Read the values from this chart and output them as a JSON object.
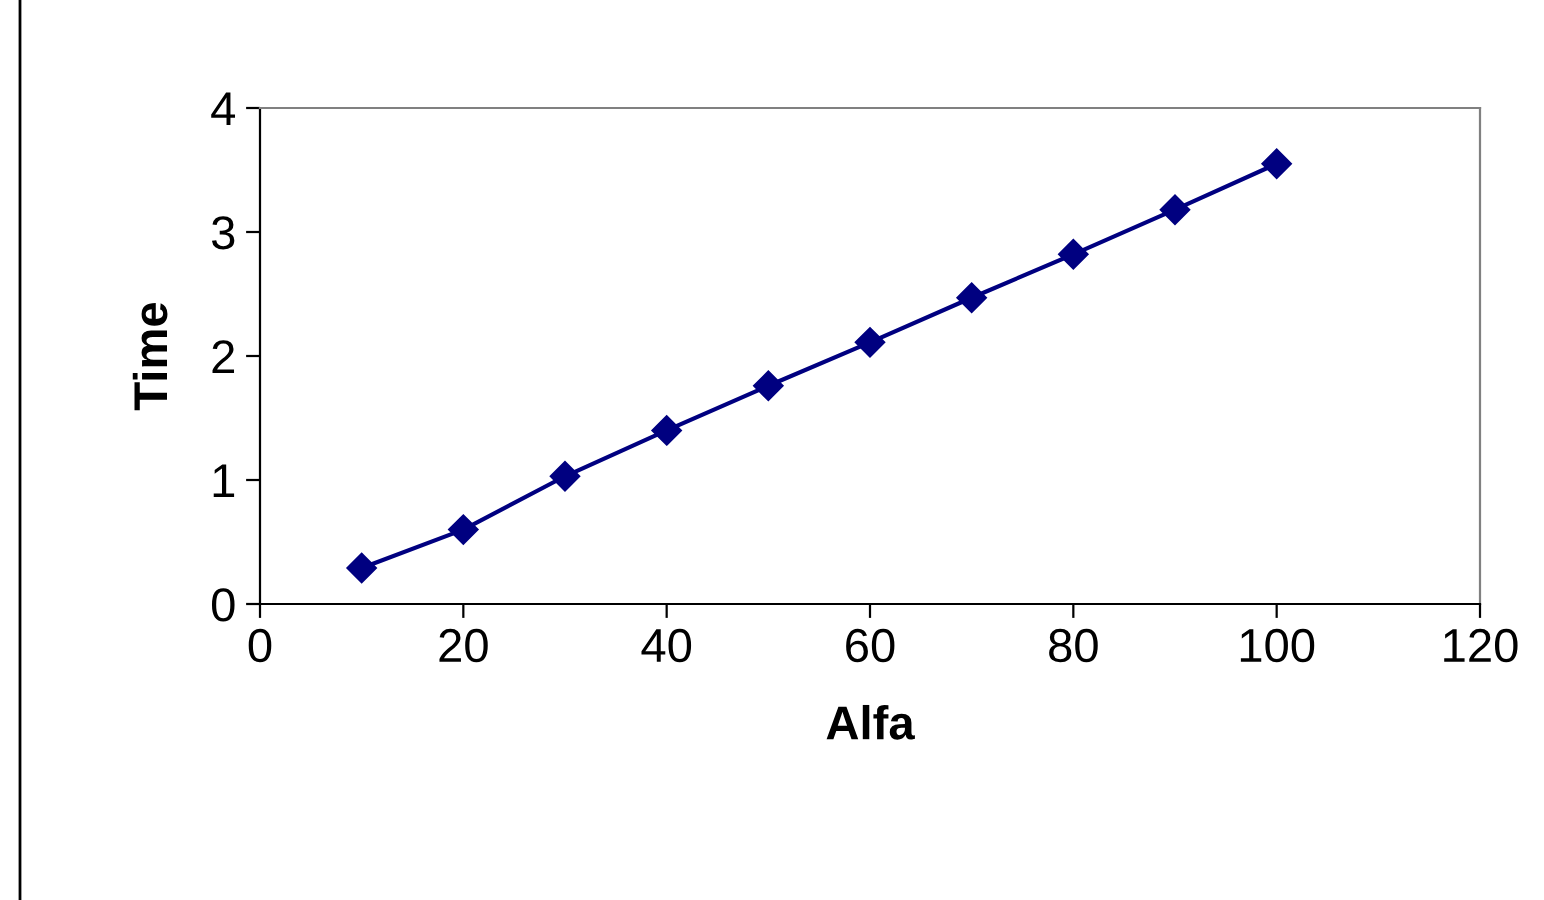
{
  "chart_data": {
    "type": "line",
    "xlabel": "Alfa",
    "ylabel": "Time",
    "x": [
      10,
      20,
      30,
      40,
      50,
      60,
      70,
      80,
      90,
      100
    ],
    "series": [
      {
        "color": "#000080",
        "values": [
          0.29,
          0.6,
          1.03,
          1.4,
          1.76,
          2.11,
          2.47,
          2.82,
          3.18,
          3.55
        ]
      }
    ],
    "xlim": [
      0,
      120
    ],
    "xticks": [
      0,
      20,
      40,
      60,
      80,
      100,
      120
    ],
    "ylim": [
      0,
      4
    ],
    "yticks": [
      0,
      1,
      2,
      3,
      4
    ],
    "marker": "diamond",
    "line_style": "solid",
    "grid": false,
    "legend": false
  }
}
